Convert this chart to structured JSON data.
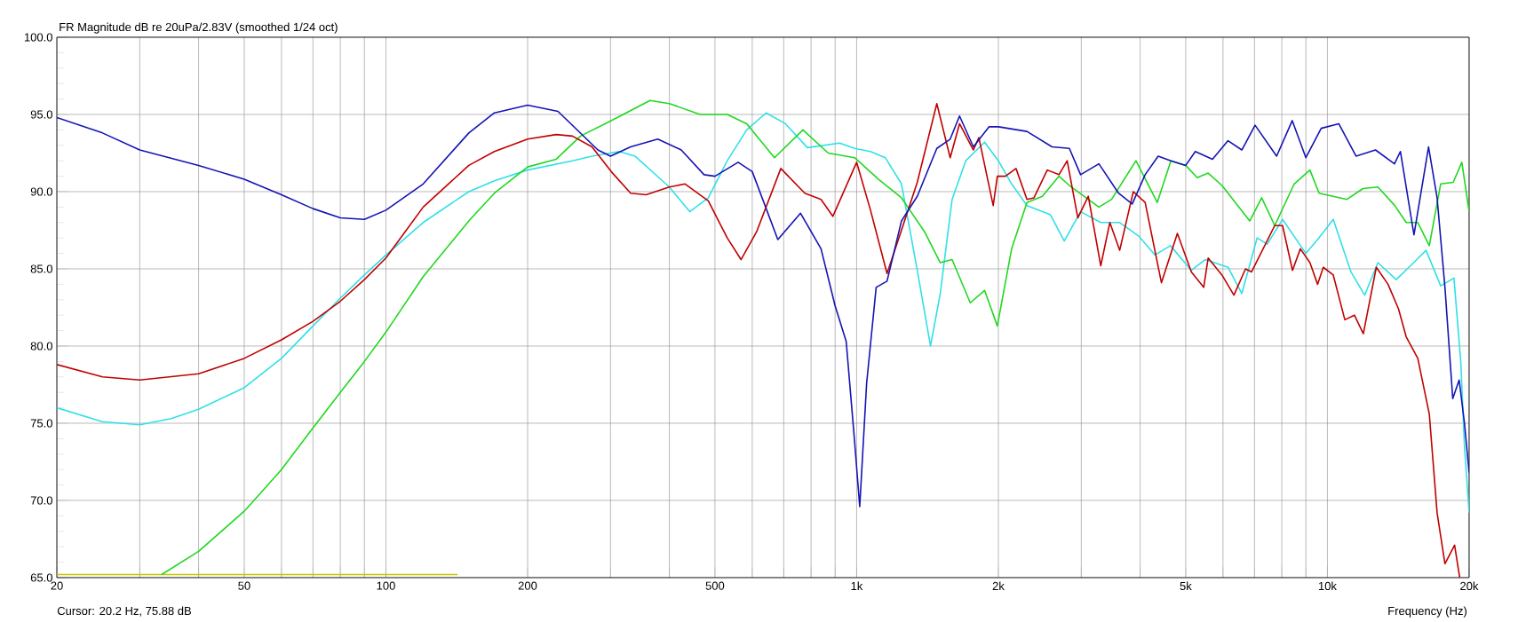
{
  "chart_data": {
    "type": "line",
    "title": "FR Magnitude dB re 20uPa/2.83V (smoothed 1/24 oct)",
    "xlabel": "Frequency (Hz)",
    "annotations": [
      "Cursor: 20.2 Hz, 75.88 dB"
    ],
    "log": "x",
    "grid": true,
    "xlim": [
      20,
      20000
    ],
    "ylim": [
      65,
      100
    ],
    "xticks": [
      20,
      {
        "value": 30,
        "label": null
      },
      {
        "value": 40,
        "label": null
      },
      50,
      {
        "value": 60,
        "label": null
      },
      {
        "value": 70,
        "label": null
      },
      {
        "value": 80,
        "label": null
      },
      {
        "value": 90,
        "label": null
      },
      100,
      200,
      {
        "value": 300,
        "label": null
      },
      {
        "value": 400,
        "label": null
      },
      500,
      {
        "value": 600,
        "label": null
      },
      {
        "value": 700,
        "label": null
      },
      {
        "value": 800,
        "label": null
      },
      {
        "value": 900,
        "label": null
      },
      {
        "value": 1000,
        "label": "1k"
      },
      {
        "value": 2000,
        "label": "2k"
      },
      {
        "value": 3000,
        "label": null
      },
      {
        "value": 4000,
        "label": null
      },
      {
        "value": 5000,
        "label": "5k"
      },
      {
        "value": 6000,
        "label": null
      },
      {
        "value": 7000,
        "label": null
      },
      {
        "value": 8000,
        "label": null
      },
      {
        "value": 9000,
        "label": null
      },
      {
        "value": 10000,
        "label": "10k"
      },
      {
        "value": 20000,
        "label": "20k"
      }
    ],
    "yticks": [
      {
        "value": 65,
        "label": "65.0"
      },
      {
        "value": 70,
        "label": "70.0"
      },
      {
        "value": 75,
        "label": "75.0"
      },
      {
        "value": 80,
        "label": "80.0"
      },
      {
        "value": 85,
        "label": "85.0"
      },
      {
        "value": 90,
        "label": "90.0"
      },
      {
        "value": 95,
        "label": "95.0"
      },
      {
        "value": 100,
        "label": "100.0"
      }
    ],
    "series": [
      {
        "color": "#c8c800",
        "x": [
          20,
          142
        ],
        "values": [
          65.2,
          65.2
        ]
      },
      {
        "color": "#30e0e8",
        "x": [
          20,
          25,
          30,
          35,
          40,
          50,
          60,
          70,
          80,
          90,
          100,
          120,
          150,
          170,
          200,
          249,
          274,
          313,
          338,
          400,
          442,
          484,
          531,
          584,
          642,
          706,
          786,
          920,
          990,
          1070,
          1150,
          1245,
          1345,
          1435,
          1505,
          1595,
          1705,
          1870,
          2000,
          2134,
          2300,
          2580,
          2760,
          2990,
          3300,
          3620,
          3980,
          4300,
          4640,
          5140,
          5500,
          6150,
          6580,
          7090,
          7450,
          8030,
          9000,
          9530,
          10290,
          11220,
          12000,
          12800,
          14000,
          15250,
          16200,
          17400,
          18570,
          19200,
          19550,
          20000
        ],
        "values": [
          76.0,
          75.1,
          74.9,
          75.3,
          75.9,
          77.3,
          79.2,
          81.3,
          83.1,
          84.6,
          85.9,
          88.0,
          90.0,
          90.7,
          91.4,
          92.0,
          92.3,
          92.6,
          92.3,
          90.3,
          88.7,
          89.6,
          92.0,
          94.0,
          95.1,
          94.4,
          92.85,
          93.15,
          92.8,
          92.6,
          92.2,
          90.5,
          84.9,
          80.0,
          83.4,
          89.5,
          92.0,
          93.2,
          92.0,
          90.5,
          89.1,
          88.5,
          86.8,
          88.7,
          88.0,
          88.0,
          87.1,
          85.9,
          86.5,
          84.9,
          85.6,
          85.1,
          83.4,
          87.0,
          86.6,
          88.2,
          86.0,
          86.9,
          88.2,
          84.8,
          83.3,
          85.4,
          84.3,
          85.4,
          86.2,
          83.9,
          84.4,
          79.0,
          73.5,
          69.2
        ]
      },
      {
        "color": "#20d820",
        "x": [
          33.4,
          40,
          50,
          60,
          70,
          80,
          90,
          100,
          120,
          150,
          170,
          200,
          230,
          259,
          301,
          364,
          400,
          465,
          531,
          584,
          669,
          769,
          870,
          990,
          1113,
          1245,
          1394,
          1505,
          1595,
          1743,
          1870,
          1990,
          2134,
          2300,
          2480,
          2690,
          2830,
          3270,
          3480,
          3920,
          4350,
          4650,
          5000,
          5290,
          5580,
          5970,
          6840,
          7250,
          7730,
          8500,
          9180,
          9600,
          11000,
          11900,
          12800,
          13900,
          14700,
          15560,
          16460,
          17400,
          18500,
          19300,
          20000
        ],
        "values": [
          65.2,
          66.7,
          69.3,
          72.0,
          74.7,
          77.0,
          79.0,
          80.9,
          84.5,
          88.1,
          89.9,
          91.6,
          92.1,
          93.6,
          94.6,
          95.9,
          95.7,
          95.0,
          95.0,
          94.4,
          92.2,
          94.0,
          92.5,
          92.2,
          90.8,
          89.6,
          87.4,
          85.4,
          85.6,
          82.8,
          83.6,
          81.3,
          86.3,
          89.3,
          89.7,
          91.0,
          90.4,
          89.0,
          89.5,
          92.0,
          89.3,
          92.0,
          91.7,
          90.9,
          91.2,
          90.4,
          88.1,
          89.6,
          87.8,
          90.5,
          91.4,
          89.9,
          89.5,
          90.2,
          90.3,
          89.1,
          88.0,
          88.0,
          86.5,
          90.5,
          90.6,
          91.9,
          88.7
        ]
      },
      {
        "color": "#c00000",
        "x": [
          20,
          25,
          30,
          40,
          50,
          60,
          70,
          80,
          90,
          100,
          120,
          150,
          170,
          200,
          230,
          249,
          274,
          301,
          331,
          357,
          400,
          432,
          484,
          531,
          568,
          613,
          690,
          776,
          840,
          890,
          1000,
          1070,
          1160,
          1245,
          1345,
          1480,
          1580,
          1654,
          1770,
          1818,
          1950,
          1990,
          2070,
          2180,
          2300,
          2380,
          2540,
          2690,
          2800,
          2950,
          3105,
          3300,
          3450,
          3620,
          3870,
          4100,
          4440,
          4800,
          5140,
          5460,
          5580,
          5970,
          6330,
          6700,
          6900,
          7730,
          8030,
          8430,
          8760,
          9180,
          9530,
          9800,
          10290,
          10890,
          11410,
          11920,
          12700,
          13450,
          14160,
          14700,
          15560,
          16460,
          17100,
          17770,
          18630,
          19100
        ],
        "values": [
          78.8,
          78.0,
          77.8,
          78.2,
          79.2,
          80.4,
          81.6,
          82.9,
          84.3,
          85.7,
          89.0,
          91.7,
          92.6,
          93.4,
          93.7,
          93.6,
          92.9,
          91.3,
          89.9,
          89.8,
          90.3,
          90.5,
          89.4,
          87.0,
          85.6,
          87.4,
          91.5,
          89.9,
          89.5,
          88.4,
          91.9,
          88.8,
          84.7,
          87.5,
          90.6,
          95.7,
          92.2,
          94.4,
          92.7,
          93.5,
          89.1,
          91.0,
          91.0,
          91.5,
          89.5,
          89.6,
          91.4,
          91.1,
          92.0,
          88.3,
          89.7,
          85.2,
          88.0,
          86.2,
          90.0,
          89.3,
          84.1,
          87.3,
          84.8,
          83.8,
          85.7,
          84.6,
          83.3,
          85.0,
          84.8,
          87.8,
          87.8,
          84.9,
          86.3,
          85.4,
          84.0,
          85.1,
          84.6,
          81.7,
          82.0,
          80.8,
          85.1,
          84.0,
          82.4,
          80.6,
          79.2,
          75.6,
          69.2,
          65.9,
          67.1,
          65.0
        ]
      },
      {
        "color": "#1414b4",
        "x": [
          20,
          25,
          30,
          40,
          50,
          60,
          70,
          80,
          90,
          100,
          120,
          150,
          170,
          200,
          232,
          282,
          300,
          331,
          378,
          424,
          474,
          500,
          560,
          600,
          680,
          760,
          840,
          900,
          950,
          990,
          1015,
          1050,
          1100,
          1160,
          1245,
          1345,
          1480,
          1580,
          1654,
          1770,
          1910,
          2000,
          2300,
          2600,
          2830,
          2990,
          3270,
          3600,
          3850,
          4100,
          4370,
          4650,
          5000,
          5240,
          5700,
          6150,
          6580,
          7020,
          7800,
          8420,
          9000,
          9700,
          10570,
          11500,
          12650,
          13880,
          14290,
          15270,
          16400,
          17100,
          17770,
          18460,
          19050,
          19550,
          20000
        ],
        "values": [
          94.8,
          93.8,
          92.7,
          91.7,
          90.8,
          89.8,
          88.9,
          88.3,
          88.2,
          88.8,
          90.5,
          93.8,
          95.1,
          95.6,
          95.2,
          92.7,
          92.3,
          92.9,
          93.4,
          92.7,
          91.1,
          91.0,
          91.9,
          91.3,
          86.9,
          88.6,
          86.3,
          82.6,
          80.3,
          73.8,
          69.6,
          77.6,
          83.8,
          84.2,
          88.1,
          89.7,
          92.8,
          93.4,
          94.9,
          92.9,
          94.2,
          94.2,
          93.9,
          92.9,
          92.8,
          91.1,
          91.8,
          89.9,
          89.2,
          91.1,
          92.3,
          92.0,
          91.7,
          92.6,
          92.1,
          93.3,
          92.7,
          94.3,
          92.3,
          94.6,
          92.2,
          94.1,
          94.4,
          92.3,
          92.7,
          91.8,
          92.6,
          87.2,
          92.9,
          89.6,
          83.8,
          76.6,
          77.8,
          75.0,
          71.8
        ]
      }
    ]
  }
}
